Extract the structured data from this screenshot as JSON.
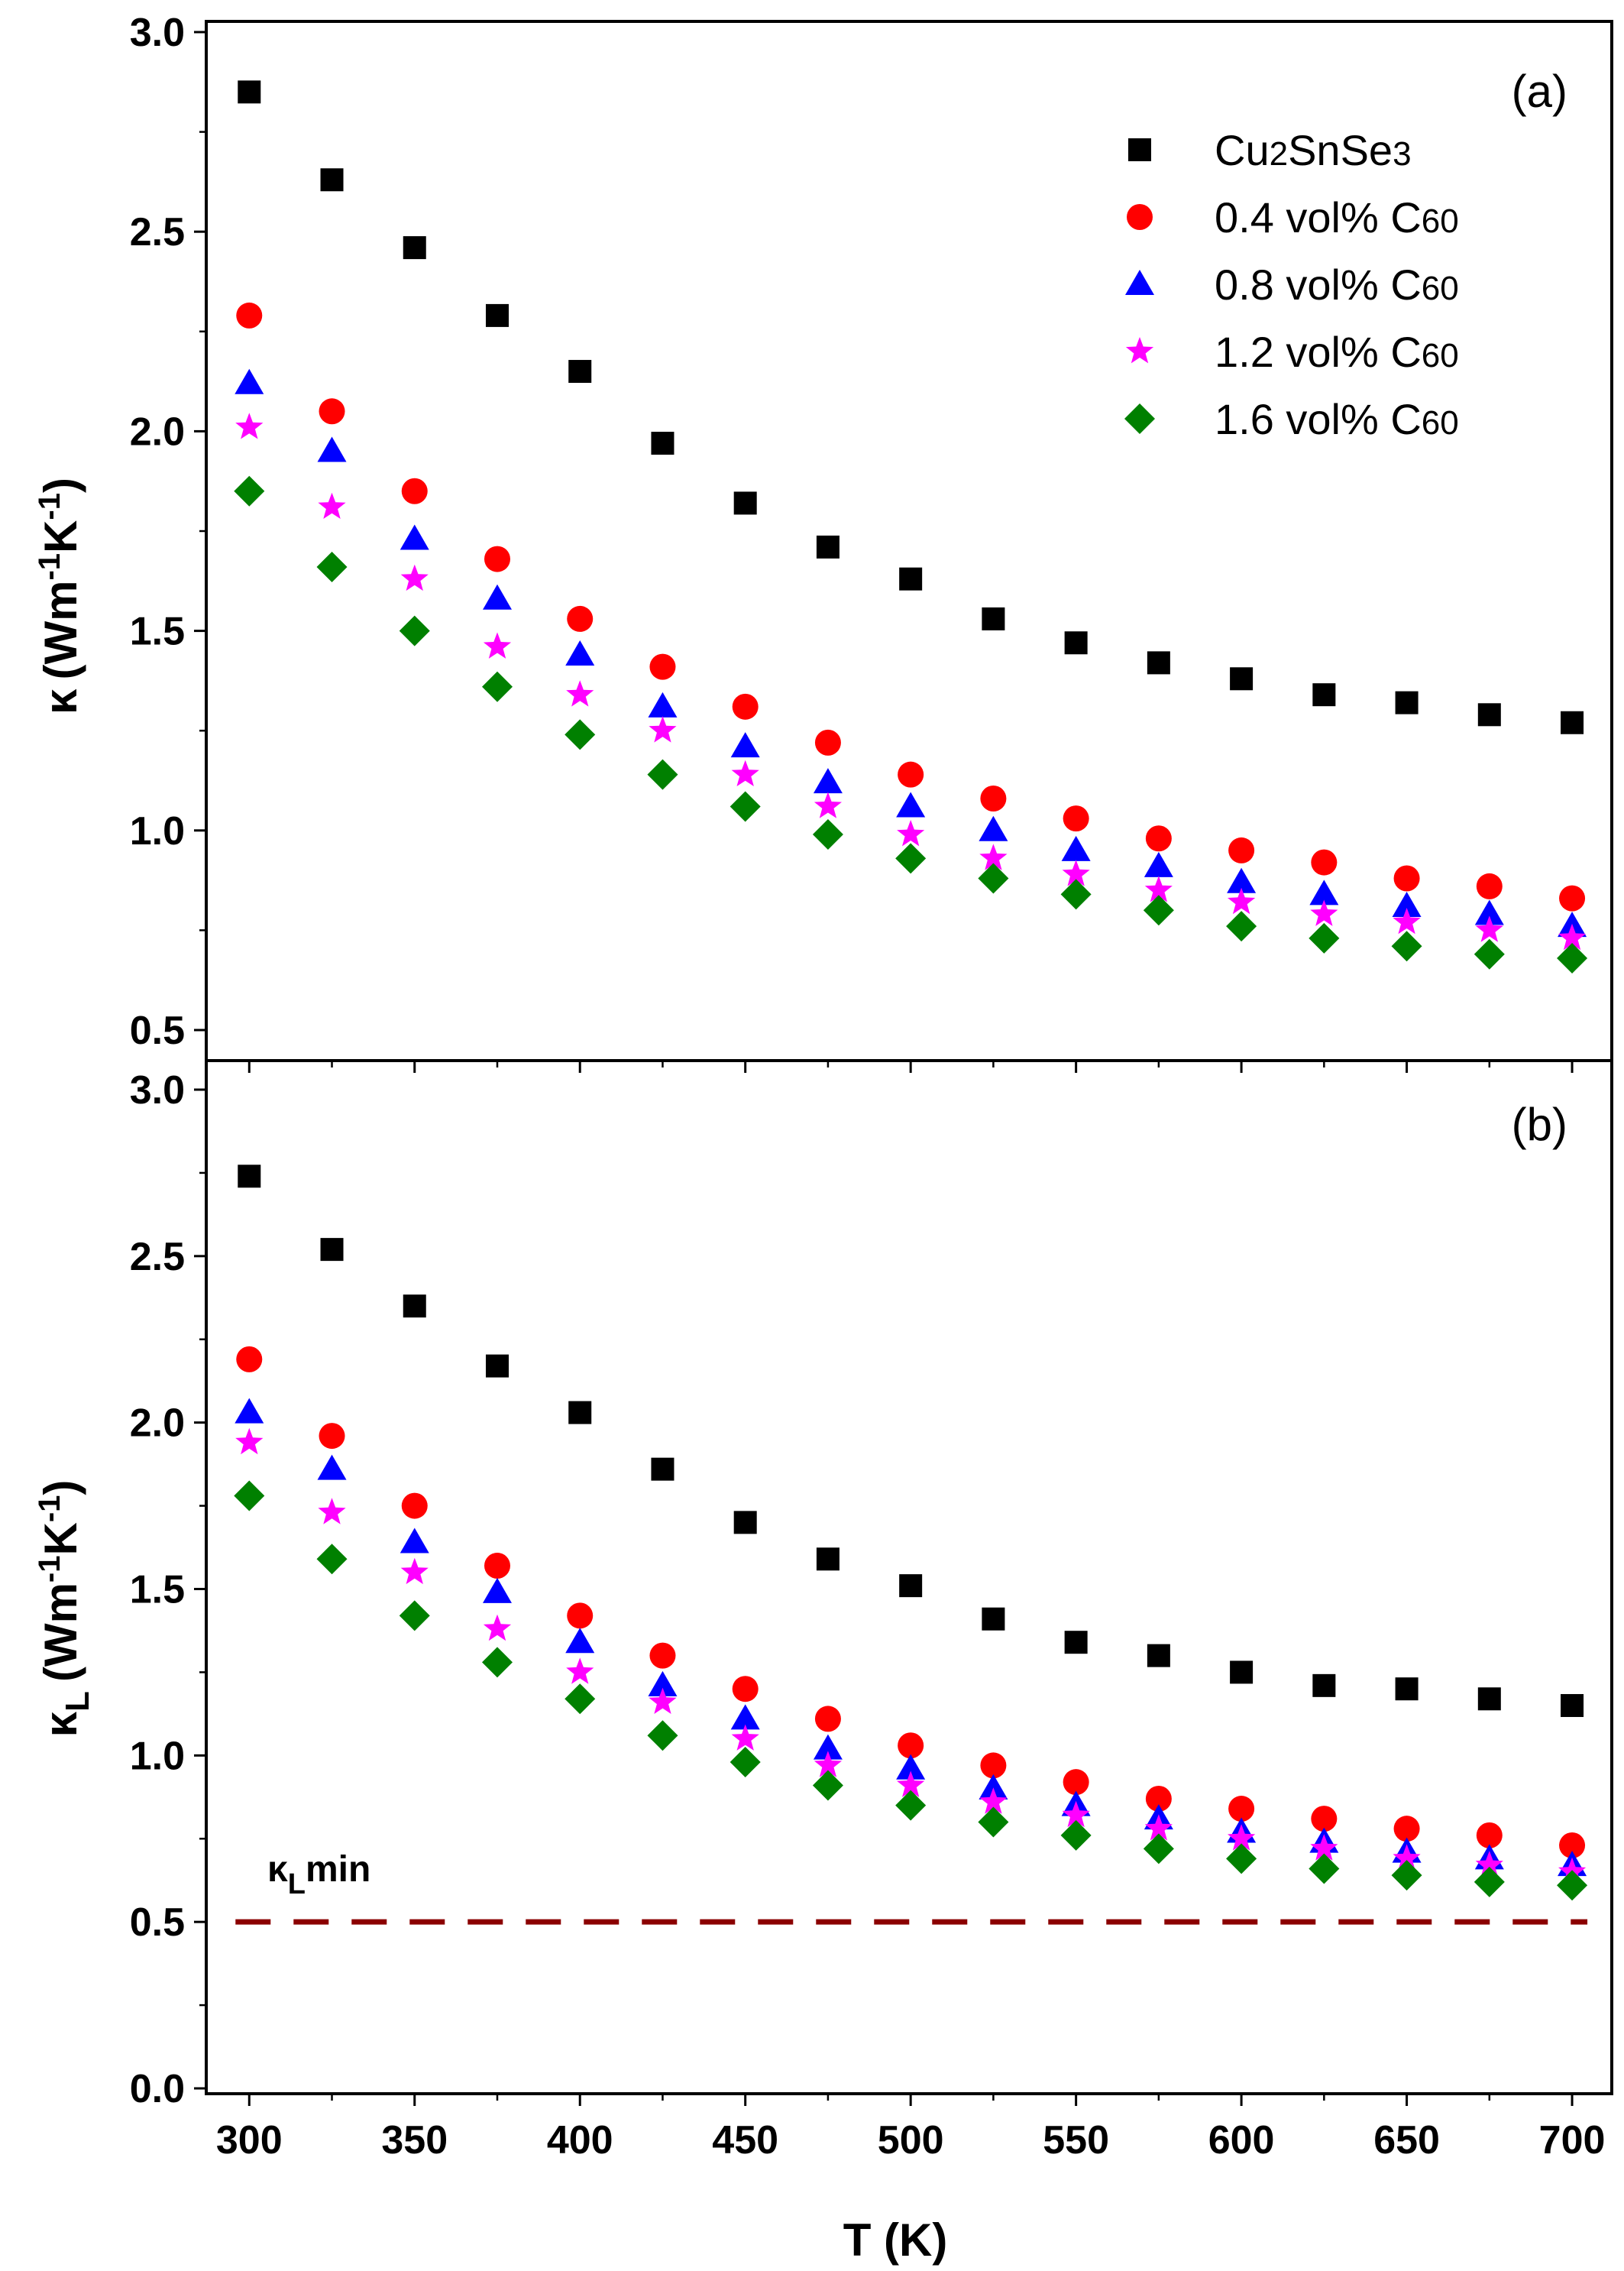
{
  "chart_data": [
    {
      "type": "scatter",
      "panel_label": "(a)",
      "ylabel": "κ (Wm⁻¹K⁻¹)",
      "ylabel_parts": {
        "symbol": "κ",
        "unit_main": "(Wm",
        "exp1": "-1",
        "unit_mid": "K",
        "exp2": "-1",
        "unit_end": ")"
      },
      "xlim": [
        287,
        712
      ],
      "ylim": [
        0.45,
        3.0
      ],
      "yticks": [
        "0.5",
        "1.0",
        "1.5",
        "2.0",
        "2.5",
        "3.0"
      ],
      "ytick_values": [
        0.5,
        1.0,
        1.5,
        2.0,
        2.5,
        3.0
      ],
      "legend_position": "top-right",
      "x": [
        300,
        325,
        350,
        375,
        400,
        425,
        450,
        475,
        500,
        525,
        550,
        575,
        600,
        625,
        650,
        675,
        700
      ],
      "series": [
        {
          "name": "Cu2SnSe3",
          "name_parts": {
            "a": "Cu",
            "b": "2",
            "c": "SnSe",
            "d": "3"
          },
          "marker": "square",
          "color": "#000000",
          "values": [
            2.85,
            2.63,
            2.46,
            2.29,
            2.15,
            1.97,
            1.82,
            1.71,
            1.63,
            1.53,
            1.47,
            1.42,
            1.38,
            1.34,
            1.32,
            1.29,
            1.27
          ]
        },
        {
          "name": "0.4 vol% C60",
          "name_parts": {
            "a": "0.4 vol% C",
            "b": "60"
          },
          "marker": "circle",
          "color": "#ff0000",
          "values": [
            2.29,
            2.05,
            1.85,
            1.68,
            1.53,
            1.41,
            1.31,
            1.22,
            1.14,
            1.08,
            1.03,
            0.98,
            0.95,
            0.92,
            0.88,
            0.86,
            0.83
          ]
        },
        {
          "name": "0.8 vol% C60",
          "name_parts": {
            "a": "0.8 vol% C",
            "b": "60"
          },
          "marker": "triangle",
          "color": "#0000ff",
          "values": [
            2.12,
            1.95,
            1.73,
            1.58,
            1.44,
            1.31,
            1.21,
            1.12,
            1.06,
            1.0,
            0.95,
            0.91,
            0.87,
            0.84,
            0.81,
            0.79,
            0.76
          ]
        },
        {
          "name": "1.2 vol% C60",
          "name_parts": {
            "a": "1.2 vol% C",
            "b": "60"
          },
          "marker": "star",
          "color": "#ff00ff",
          "values": [
            2.01,
            1.81,
            1.63,
            1.46,
            1.34,
            1.25,
            1.14,
            1.06,
            0.99,
            0.93,
            0.89,
            0.85,
            0.82,
            0.79,
            0.77,
            0.75,
            0.73
          ]
        },
        {
          "name": "1.6 vol% C60",
          "name_parts": {
            "a": "1.6 vol% C",
            "b": "60"
          },
          "marker": "diamond",
          "color": "#008000",
          "values": [
            1.85,
            1.66,
            1.5,
            1.36,
            1.24,
            1.14,
            1.06,
            0.99,
            0.93,
            0.88,
            0.84,
            0.8,
            0.76,
            0.73,
            0.71,
            0.69,
            0.68
          ]
        }
      ]
    },
    {
      "type": "scatter",
      "panel_label": "(b)",
      "xlabel": "T (K)",
      "ylabel": "κL (Wm⁻¹K⁻¹)",
      "ylabel_parts": {
        "symbol": "κ",
        "sub": "L",
        "unit_main": "(Wm",
        "exp1": "-1",
        "unit_mid": "K",
        "exp2": "-1",
        "unit_end": ")"
      },
      "xlim": [
        287,
        712
      ],
      "ylim": [
        0.0,
        3.15
      ],
      "xticks": [
        "300",
        "350",
        "400",
        "450",
        "500",
        "550",
        "600",
        "650",
        "700"
      ],
      "xtick_values": [
        300,
        350,
        400,
        450,
        500,
        550,
        600,
        650,
        700
      ],
      "yticks": [
        "0.0",
        "0.5",
        "1.0",
        "1.5",
        "2.0",
        "2.5",
        "3.0"
      ],
      "ytick_values": [
        0.0,
        0.5,
        1.0,
        1.5,
        2.0,
        2.5,
        3.0
      ],
      "x": [
        300,
        325,
        350,
        375,
        400,
        425,
        450,
        475,
        500,
        525,
        550,
        575,
        600,
        625,
        650,
        675,
        700
      ],
      "series": [
        {
          "marker": "square",
          "color": "#000000",
          "values": [
            2.74,
            2.52,
            2.35,
            2.17,
            2.03,
            1.86,
            1.7,
            1.59,
            1.51,
            1.41,
            1.34,
            1.3,
            1.25,
            1.21,
            1.2,
            1.17,
            1.15
          ]
        },
        {
          "marker": "circle",
          "color": "#ff0000",
          "values": [
            2.19,
            1.96,
            1.75,
            1.57,
            1.42,
            1.3,
            1.2,
            1.11,
            1.03,
            0.97,
            0.92,
            0.87,
            0.84,
            0.81,
            0.78,
            0.76,
            0.73
          ]
        },
        {
          "marker": "triangle",
          "color": "#0000ff",
          "values": [
            2.03,
            1.86,
            1.64,
            1.49,
            1.34,
            1.21,
            1.11,
            1.02,
            0.96,
            0.9,
            0.85,
            0.81,
            0.77,
            0.74,
            0.71,
            0.69,
            0.67
          ]
        },
        {
          "marker": "star",
          "color": "#ff00ff",
          "values": [
            1.94,
            1.73,
            1.55,
            1.38,
            1.25,
            1.16,
            1.05,
            0.97,
            0.91,
            0.86,
            0.82,
            0.78,
            0.75,
            0.72,
            0.69,
            0.67,
            0.65
          ]
        },
        {
          "marker": "diamond",
          "color": "#008000",
          "values": [
            1.78,
            1.59,
            1.42,
            1.28,
            1.17,
            1.06,
            0.98,
            0.91,
            0.85,
            0.8,
            0.76,
            0.72,
            0.69,
            0.66,
            0.64,
            0.62,
            0.61
          ]
        }
      ],
      "reference_line": {
        "label_main": "κ",
        "label_sub": "L",
        "label_tail": "min",
        "value": 0.5,
        "color": "#8b0000",
        "style": "dashed"
      }
    }
  ]
}
